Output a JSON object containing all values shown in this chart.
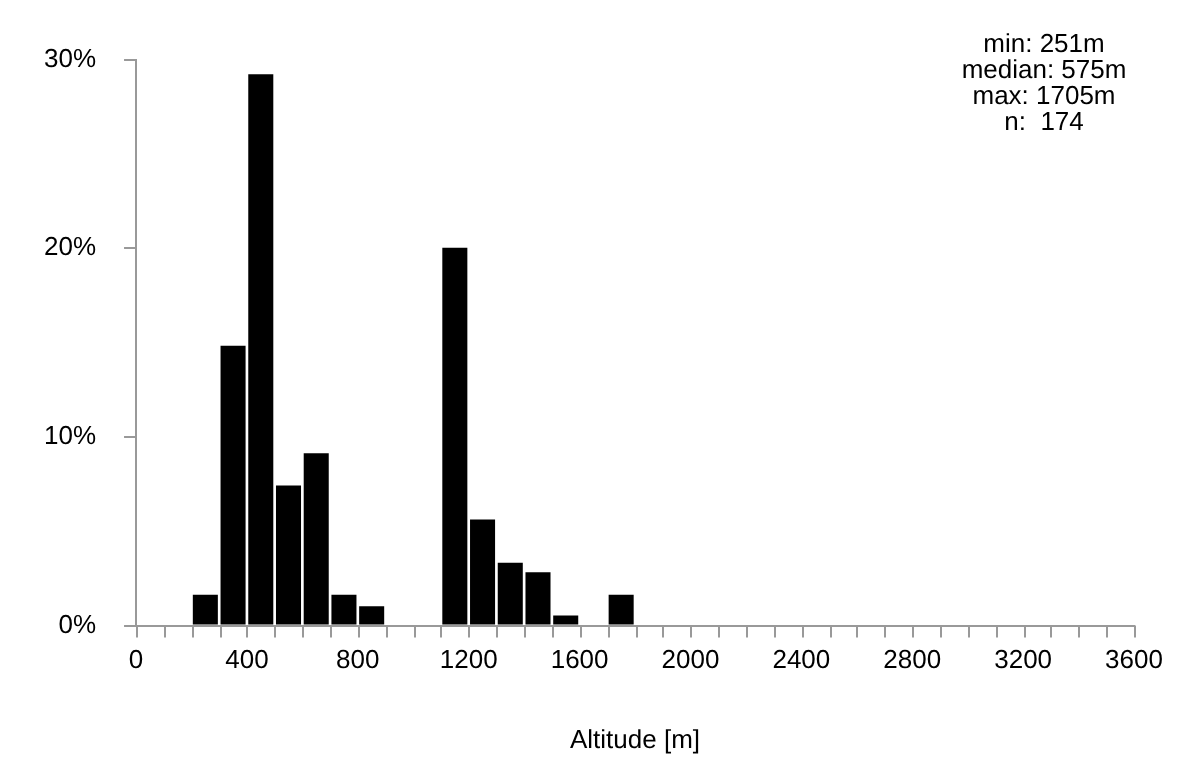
{
  "chart_data": {
    "type": "histogram",
    "xlabel": "Altitude [m]",
    "bins": [
      0,
      100,
      200,
      300,
      400,
      500,
      600,
      700,
      800,
      900,
      1000,
      1100,
      1200,
      1300,
      1400,
      1500,
      1600,
      1700,
      1800,
      1900,
      2000,
      2100,
      2200,
      2300,
      2400,
      2500,
      2600,
      2700,
      2800,
      2900,
      3000,
      3100,
      3200,
      3300,
      3400,
      3500,
      3600
    ],
    "values": [
      0,
      0,
      1.7,
      14.9,
      29.3,
      7.5,
      9.2,
      1.7,
      1.1,
      0,
      0,
      20.1,
      5.7,
      3.4,
      2.9,
      0.6,
      0,
      1.7,
      0,
      0,
      0,
      0,
      0,
      0,
      0,
      0,
      0,
      0,
      0,
      0,
      0,
      0,
      0,
      0,
      0,
      0
    ],
    "color": "#000000",
    "xlim": [
      0,
      3600
    ],
    "xticks": [
      0,
      {
        "value": 100,
        "label": null
      },
      {
        "value": 200,
        "label": null
      },
      {
        "value": 300,
        "label": null
      },
      400,
      {
        "value": 500,
        "label": null
      },
      {
        "value": 600,
        "label": null
      },
      {
        "value": 700,
        "label": null
      },
      800,
      {
        "value": 900,
        "label": null
      },
      {
        "value": 1000,
        "label": null
      },
      {
        "value": 1100,
        "label": null
      },
      1200,
      {
        "value": 1300,
        "label": null
      },
      {
        "value": 1400,
        "label": null
      },
      {
        "value": 1500,
        "label": null
      },
      1600,
      {
        "value": 1700,
        "label": null
      },
      {
        "value": 1800,
        "label": null
      },
      {
        "value": 1900,
        "label": null
      },
      2000,
      {
        "value": 2100,
        "label": null
      },
      {
        "value": 2200,
        "label": null
      },
      {
        "value": 2300,
        "label": null
      },
      2400,
      {
        "value": 2500,
        "label": null
      },
      {
        "value": 2600,
        "label": null
      },
      {
        "value": 2700,
        "label": null
      },
      2800,
      {
        "value": 2900,
        "label": null
      },
      {
        "value": 3000,
        "label": null
      },
      {
        "value": 3100,
        "label": null
      },
      3200,
      {
        "value": 3300,
        "label": null
      },
      {
        "value": 3400,
        "label": null
      },
      {
        "value": 3500,
        "label": null
      },
      3600
    ],
    "ylim": [
      0,
      30
    ],
    "yticks": [
      {
        "value": 0,
        "label": "0%"
      },
      {
        "value": 10,
        "label": "10%"
      },
      {
        "value": 20,
        "label": "20%"
      },
      {
        "value": 30,
        "label": "30%"
      }
    ],
    "grid": false,
    "legend": false,
    "annotations": [
      "min: 251m",
      "median: 575m",
      "max: 1705m",
      "n:  174"
    ]
  }
}
